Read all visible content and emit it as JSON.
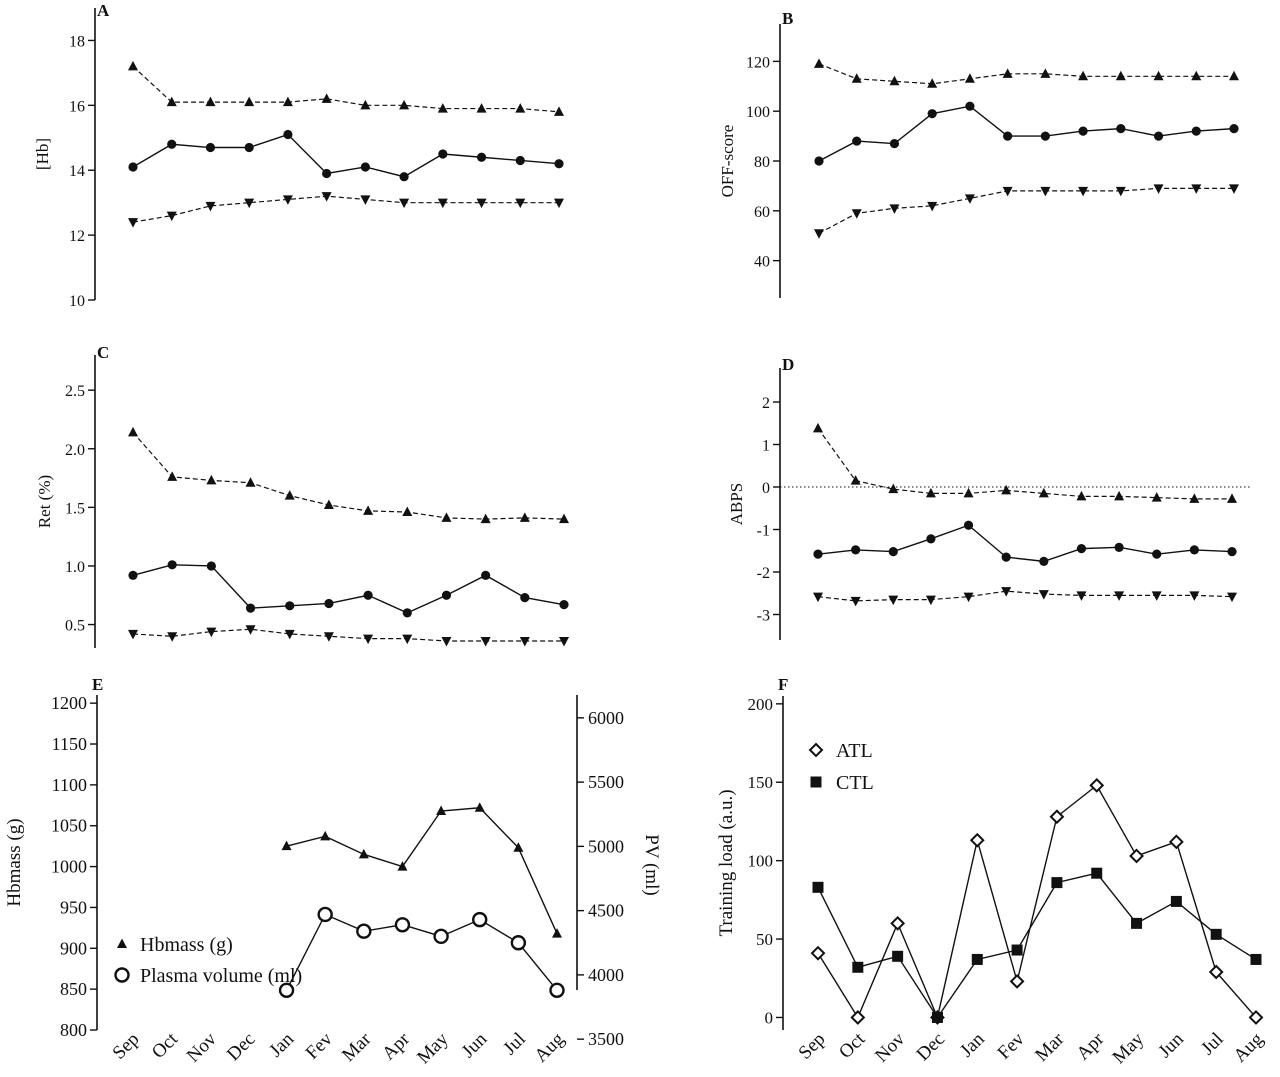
{
  "chart_data": [
    {
      "panel": "A",
      "type": "line",
      "ylabel": "[Hb]",
      "ylim": [
        10,
        19
      ],
      "yticks": [
        10,
        12,
        14,
        16,
        18
      ],
      "categories": [
        "Sep",
        "Oct",
        "Nov",
        "Dec",
        "Jan",
        "Fev",
        "Mar",
        "Apr",
        "May",
        "Jun",
        "Jul",
        "Aug"
      ],
      "series": [
        {
          "values": [
            17.2,
            16.1,
            16.1,
            16.1,
            16.1,
            16.2,
            16.0,
            16.0,
            15.9,
            15.9,
            15.9,
            15.8
          ],
          "marker": "triangle-up",
          "line": "dashed"
        },
        {
          "values": [
            14.1,
            14.8,
            14.7,
            14.7,
            15.1,
            13.9,
            14.1,
            13.8,
            14.5,
            14.4,
            14.3,
            14.2
          ],
          "marker": "circle",
          "line": "solid"
        },
        {
          "values": [
            12.4,
            12.6,
            12.9,
            13.0,
            13.1,
            13.2,
            13.1,
            13.0,
            13.0,
            13.0,
            13.0,
            13.0
          ],
          "marker": "triangle-down",
          "line": "dashed"
        }
      ]
    },
    {
      "panel": "B",
      "type": "line",
      "ylabel": "OFF-score",
      "ylim": [
        25,
        135
      ],
      "yticks": [
        40,
        60,
        80,
        100,
        120
      ],
      "categories": [
        "Sep",
        "Oct",
        "Nov",
        "Dec",
        "Jan",
        "Fev",
        "Mar",
        "Apr",
        "May",
        "Jun",
        "Jul",
        "Aug"
      ],
      "series": [
        {
          "values": [
            119,
            113,
            112,
            111,
            113,
            115,
            115,
            114,
            114,
            114,
            114,
            114
          ],
          "marker": "triangle-up",
          "line": "dashed"
        },
        {
          "values": [
            80,
            88,
            87,
            99,
            102,
            90,
            90,
            92,
            93,
            90,
            92,
            93
          ],
          "marker": "circle",
          "line": "solid"
        },
        {
          "values": [
            51,
            59,
            61,
            62,
            65,
            68,
            68,
            68,
            68,
            69,
            69,
            69
          ],
          "marker": "triangle-down",
          "line": "dashed"
        }
      ]
    },
    {
      "panel": "C",
      "type": "line",
      "ylabel": "Ret (%)",
      "ylim": [
        0.3,
        2.8
      ],
      "yticks": [
        0.5,
        1.0,
        1.5,
        2.0,
        2.5
      ],
      "yticklabels": [
        "0.5",
        "1.0",
        "1.5",
        "2.0",
        "2.5"
      ],
      "categories": [
        "Sep",
        "Oct",
        "Nov",
        "Dec",
        "Jan",
        "Fev",
        "Mar",
        "Apr",
        "May",
        "Jun",
        "Jul",
        "Aug"
      ],
      "series": [
        {
          "values": [
            2.14,
            1.76,
            1.73,
            1.71,
            1.6,
            1.52,
            1.47,
            1.46,
            1.41,
            1.4,
            1.41,
            1.4
          ],
          "marker": "triangle-up",
          "line": "dashed"
        },
        {
          "values": [
            0.92,
            1.01,
            1.0,
            0.64,
            0.66,
            0.68,
            0.75,
            0.6,
            0.75,
            0.92,
            0.73,
            0.67
          ],
          "marker": "circle",
          "line": "solid"
        },
        {
          "values": [
            0.42,
            0.4,
            0.44,
            0.46,
            0.42,
            0.4,
            0.38,
            0.38,
            0.36,
            0.36,
            0.36,
            0.36
          ],
          "marker": "triangle-down",
          "line": "dashed"
        }
      ]
    },
    {
      "panel": "D",
      "type": "line",
      "ylabel": "ABPS",
      "ylim": [
        -3.6,
        2.8
      ],
      "yticks": [
        -3,
        -2,
        -1,
        0,
        1,
        2
      ],
      "reference_line": 0,
      "categories": [
        "Sep",
        "Oct",
        "Nov",
        "Dec",
        "Jan",
        "Fev",
        "Mar",
        "Apr",
        "May",
        "Jun",
        "Jul",
        "Aug"
      ],
      "series": [
        {
          "values": [
            1.38,
            0.15,
            -0.05,
            -0.15,
            -0.15,
            -0.08,
            -0.15,
            -0.22,
            -0.22,
            -0.25,
            -0.28,
            -0.28
          ],
          "marker": "triangle-up",
          "line": "dashed"
        },
        {
          "values": [
            -1.58,
            -1.48,
            -1.52,
            -1.22,
            -0.9,
            -1.65,
            -1.75,
            -1.45,
            -1.42,
            -1.58,
            -1.48,
            -1.52
          ],
          "marker": "circle",
          "line": "solid"
        },
        {
          "values": [
            -2.58,
            -2.68,
            -2.65,
            -2.65,
            -2.58,
            -2.45,
            -2.52,
            -2.55,
            -2.55,
            -2.55,
            -2.55,
            -2.58
          ],
          "marker": "triangle-down",
          "line": "dashed"
        }
      ]
    },
    {
      "panel": "E",
      "type": "line",
      "ylabel": "Hbmass (g)",
      "ylim": [
        800,
        1210
      ],
      "yticks": [
        800,
        850,
        900,
        950,
        1000,
        1050,
        1100,
        1150,
        1200
      ],
      "y2label": "PV (ml)",
      "y2lim": [
        3400,
        6100
      ],
      "y2ticks": [
        3500,
        4000,
        4500,
        5000,
        5500,
        6000
      ],
      "categories": [
        "Sep",
        "Oct",
        "Nov",
        "Dec",
        "Jan",
        "Fev",
        "Mar",
        "Apr",
        "May",
        "Jun",
        "Jul",
        "Aug"
      ],
      "series": [
        {
          "name": "Hbmass (g)",
          "axis": "left",
          "marker": "triangle-up",
          "line": "solid",
          "values": [
            null,
            null,
            null,
            null,
            1025,
            1037,
            1015,
            1000,
            1068,
            1072,
            1023,
            918
          ]
        },
        {
          "name": "Plasma volume (ml)",
          "axis": "right",
          "marker": "circle-open",
          "line": "solid",
          "values": [
            null,
            null,
            null,
            null,
            3880,
            4470,
            4340,
            4390,
            4300,
            4430,
            4250,
            3880
          ]
        }
      ],
      "legend_position": "bottom-left"
    },
    {
      "panel": "F",
      "type": "line",
      "ylabel": "Training load (a.u.)",
      "ylim": [
        -8,
        205
      ],
      "yticks": [
        0,
        50,
        100,
        150,
        200
      ],
      "categories": [
        "Sep",
        "Oct",
        "Nov",
        "Dec",
        "Jan",
        "Fev",
        "Mar",
        "Apr",
        "May",
        "Jun",
        "Jul",
        "Aug"
      ],
      "series": [
        {
          "name": "ATL",
          "marker": "diamond-open",
          "line": "solid",
          "values": [
            41,
            0,
            60,
            0,
            113,
            23,
            128,
            148,
            103,
            112,
            29,
            0
          ]
        },
        {
          "name": "CTL",
          "marker": "square",
          "line": "solid",
          "values": [
            83,
            32,
            39,
            0,
            37,
            43,
            86,
            92,
            60,
            74,
            53,
            37
          ]
        }
      ],
      "legend_position": "top-left"
    }
  ]
}
